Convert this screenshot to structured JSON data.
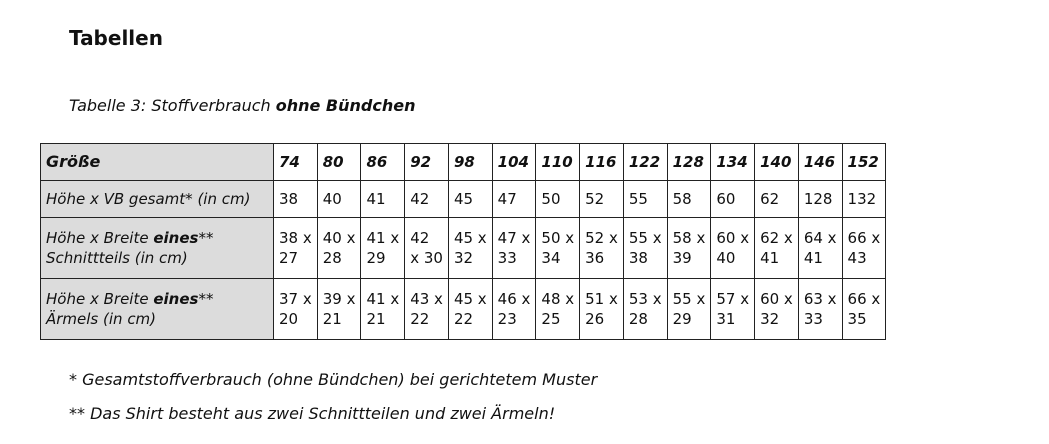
{
  "heading": "Tabellen",
  "caption": {
    "prefix": "Tabelle 3: Stoffverbrauch ",
    "emphasis": "ohne Bündchen"
  },
  "table": {
    "header_label": "Größe",
    "sizes": [
      "74",
      "80",
      "86",
      "92",
      "98",
      "104",
      "110",
      "116",
      "122",
      "128",
      "134",
      "140",
      "146",
      "152"
    ],
    "rows": [
      {
        "label_before": "Höhe x VB gesamt* (in cm)",
        "label_bold": "",
        "label_after": "",
        "label_line2": "",
        "cells": [
          [
            "38"
          ],
          [
            "40"
          ],
          [
            "41"
          ],
          [
            "42"
          ],
          [
            "45"
          ],
          [
            "47"
          ],
          [
            "50"
          ],
          [
            "52"
          ],
          [
            "55"
          ],
          [
            "58"
          ],
          [
            "60"
          ],
          [
            "62"
          ],
          [
            "128"
          ],
          [
            "132"
          ]
        ]
      },
      {
        "label_before": "Höhe x Breite ",
        "label_bold": "eines",
        "label_after": "**",
        "label_line2": "Schnittteils (in cm)",
        "cells": [
          [
            "38 x",
            "27"
          ],
          [
            "40 x",
            "28"
          ],
          [
            "41 x",
            "29"
          ],
          [
            "42",
            "x 30"
          ],
          [
            "45 x",
            "32"
          ],
          [
            "47 x",
            "33"
          ],
          [
            "50 x",
            "34"
          ],
          [
            "52 x",
            "36"
          ],
          [
            "55 x",
            "38"
          ],
          [
            "58 x",
            "39"
          ],
          [
            "60 x",
            "40"
          ],
          [
            "62 x",
            "41"
          ],
          [
            "64 x",
            "41"
          ],
          [
            "66 x",
            "43"
          ]
        ]
      },
      {
        "label_before": "Höhe x Breite ",
        "label_bold": "eines",
        "label_after": "**",
        "label_line2": "Ärmels (in cm)",
        "cells": [
          [
            "37 x",
            "20"
          ],
          [
            "39 x",
            "21"
          ],
          [
            "41 x",
            "21"
          ],
          [
            "43 x",
            "22"
          ],
          [
            "45 x",
            "22"
          ],
          [
            "46 x",
            "23"
          ],
          [
            "48 x",
            "25"
          ],
          [
            "51 x",
            "26"
          ],
          [
            "53 x",
            "28"
          ],
          [
            "55 x",
            "29"
          ],
          [
            "57 x",
            "31"
          ],
          [
            "60 x",
            "32"
          ],
          [
            "63 x",
            "33"
          ],
          [
            "66 x",
            "35"
          ]
        ]
      }
    ]
  },
  "notes": [
    "* Gesamtstoffverbrauch (ohne Bündchen) bei gerichtetem Muster",
    "** Das Shirt besteht aus zwei Schnittteilen und zwei Ärmeln!"
  ]
}
